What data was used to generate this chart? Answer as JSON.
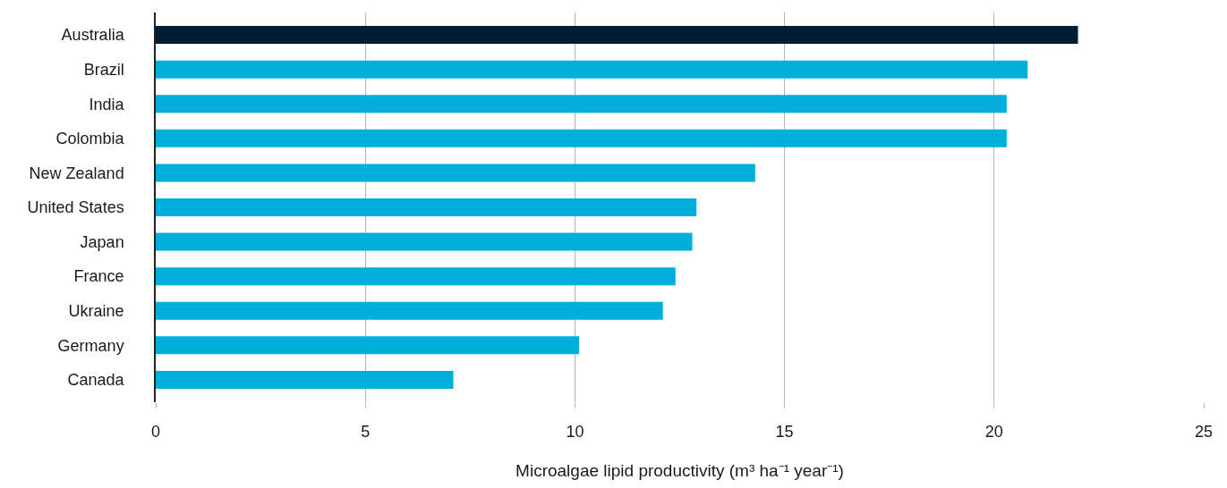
{
  "chart_data": {
    "type": "bar",
    "orientation": "horizontal",
    "xlabel": "Microalgae lipid productivity (m³ ha⁻¹ year⁻¹)",
    "categories": [
      "Australia",
      "Brazil",
      "India",
      "Colombia",
      "New Zealand",
      "United States",
      "Japan",
      "France",
      "Ukraine",
      "Germany",
      "Canada"
    ],
    "values": [
      22.0,
      20.8,
      20.3,
      20.3,
      14.3,
      12.9,
      12.8,
      12.4,
      12.1,
      10.1,
      7.1
    ],
    "colors": [
      "#001d33",
      "#00aedb",
      "#00aedb",
      "#00aedb",
      "#00aedb",
      "#00aedb",
      "#00aedb",
      "#00aedb",
      "#00aedb",
      "#00aedb",
      "#00aedb"
    ],
    "xlim": [
      0,
      25
    ],
    "xticks": [
      0,
      5,
      10,
      15,
      20,
      25
    ],
    "grid": "x"
  }
}
